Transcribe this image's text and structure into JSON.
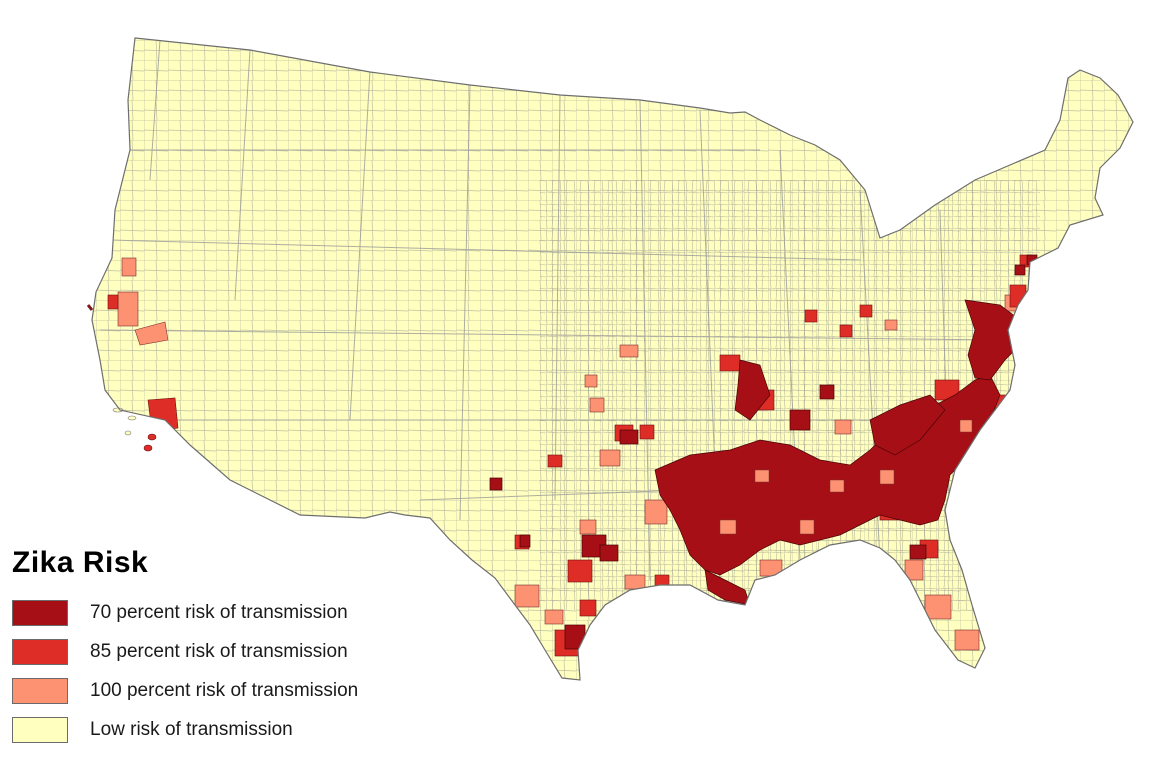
{
  "legend": {
    "title": "Zika  Risk",
    "items": [
      {
        "label": "70 percent risk of transmission",
        "color": "#a50f15",
        "level": "70"
      },
      {
        "label": "85 percent risk of transmission",
        "color": "#de2d26",
        "level": "85"
      },
      {
        "label": "100 percent risk of transmission",
        "color": "#fc9272",
        "level": "100"
      },
      {
        "label": "Low risk of transmission",
        "color": "#ffffbf",
        "level": "low"
      }
    ]
  },
  "map": {
    "subject": "Contiguous United States counties",
    "base_color": "#ffffbf",
    "border_color": "#7a7a7a"
  }
}
